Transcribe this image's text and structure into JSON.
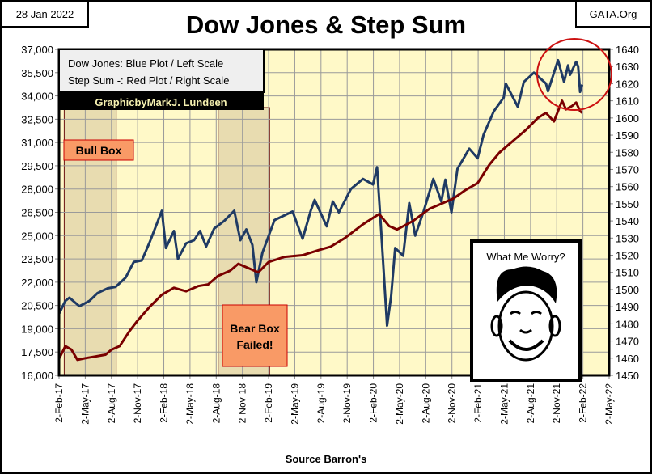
{
  "header": {
    "date": "28 Jan 2022",
    "site": "GATA.Org",
    "title": "Dow Jones & Step Sum"
  },
  "legend": {
    "line1": "Dow Jones: Blue Plot / Left Scale",
    "line2": "Step Sum -: Red Plot / Right Scale",
    "credit": "GraphicbyMarkJ. Lundeen"
  },
  "annotations": {
    "bull_box": "Bull Box",
    "bear_box_line1": "Bear Box",
    "bear_box_line2": "Failed!",
    "worry": "What Me Worry?"
  },
  "footer": {
    "source": "Source Barron's"
  },
  "colors": {
    "dow": "#1f3a64",
    "step_sum": "#7a0000",
    "plot_bg": "#fff9c8",
    "box_fill": "#e8dcb0",
    "label_fill": "#f99a66",
    "circle": "#cc1111"
  },
  "chart_data": {
    "type": "line",
    "title": "Dow Jones & Step Sum",
    "xlabel": "Source Barron's",
    "x_range": [
      "2017-02-02",
      "2022-05-02"
    ],
    "x_ticks": [
      "2-Feb-17",
      "2-May-17",
      "2-Aug-17",
      "2-Nov-17",
      "2-Feb-18",
      "2-May-18",
      "2-Aug-18",
      "2-Nov-18",
      "2-Feb-19",
      "2-May-19",
      "2-Aug-19",
      "2-Nov-19",
      "2-Feb-20",
      "2-May-20",
      "2-Aug-20",
      "2-Nov-20",
      "2-Feb-21",
      "2-May-21",
      "2-Aug-21",
      "2-Nov-21",
      "2-Feb-22",
      "2-May-22"
    ],
    "y_left": {
      "range": [
        16000,
        37000
      ],
      "ticks": [
        "16,000",
        "17,500",
        "19,000",
        "20,500",
        "22,000",
        "23,500",
        "25,000",
        "26,500",
        "28,000",
        "29,500",
        "31,000",
        "32,500",
        "34,000",
        "35,500",
        "37,000"
      ]
    },
    "y_right": {
      "range": [
        1450,
        1640
      ],
      "ticks": [
        "1450",
        "1460",
        "1470",
        "1480",
        "1490",
        "1500",
        "1510",
        "1520",
        "1530",
        "1540",
        "1550",
        "1560",
        "1570",
        "1580",
        "1590",
        "1600",
        "1610",
        "1620",
        "1630",
        "1640"
      ]
    },
    "grid": true,
    "series": [
      {
        "name": "Dow Jones",
        "axis": "left",
        "points": [
          [
            "2017-02-03",
            20000
          ],
          [
            "2017-02-24",
            20800
          ],
          [
            "2017-03-10",
            21000
          ],
          [
            "2017-04-14",
            20450
          ],
          [
            "2017-05-19",
            20800
          ],
          [
            "2017-06-16",
            21300
          ],
          [
            "2017-07-21",
            21600
          ],
          [
            "2017-08-18",
            21700
          ],
          [
            "2017-09-22",
            22300
          ],
          [
            "2017-10-20",
            23300
          ],
          [
            "2017-11-17",
            23400
          ],
          [
            "2017-12-15",
            24600
          ],
          [
            "2018-01-26",
            26600
          ],
          [
            "2018-02-09",
            24200
          ],
          [
            "2018-03-09",
            25300
          ],
          [
            "2018-03-23",
            23500
          ],
          [
            "2018-04-20",
            24500
          ],
          [
            "2018-05-18",
            24700
          ],
          [
            "2018-06-08",
            25300
          ],
          [
            "2018-06-29",
            24300
          ],
          [
            "2018-07-27",
            25450
          ],
          [
            "2018-08-31",
            25950
          ],
          [
            "2018-10-05",
            26600
          ],
          [
            "2018-10-26",
            24700
          ],
          [
            "2018-11-16",
            25400
          ],
          [
            "2018-12-07",
            24400
          ],
          [
            "2018-12-21",
            22000
          ],
          [
            "2019-01-11",
            23900
          ],
          [
            "2019-02-22",
            26000
          ],
          [
            "2019-04-26",
            26550
          ],
          [
            "2019-05-31",
            24800
          ],
          [
            "2019-06-28",
            26600
          ],
          [
            "2019-07-12",
            27300
          ],
          [
            "2019-08-23",
            25600
          ],
          [
            "2019-09-13",
            27200
          ],
          [
            "2019-10-04",
            26500
          ],
          [
            "2019-11-15",
            28000
          ],
          [
            "2019-12-27",
            28650
          ],
          [
            "2020-01-31",
            28300
          ],
          [
            "2020-02-14",
            29400
          ],
          [
            "2020-02-28",
            25400
          ],
          [
            "2020-03-20",
            19200
          ],
          [
            "2020-04-03",
            21100
          ],
          [
            "2020-04-17",
            24200
          ],
          [
            "2020-05-15",
            23700
          ],
          [
            "2020-06-05",
            27100
          ],
          [
            "2020-06-26",
            25000
          ],
          [
            "2020-07-24",
            26500
          ],
          [
            "2020-08-28",
            28650
          ],
          [
            "2020-09-25",
            27200
          ],
          [
            "2020-10-09",
            28600
          ],
          [
            "2020-10-30",
            26500
          ],
          [
            "2020-11-20",
            29300
          ],
          [
            "2020-12-31",
            30600
          ],
          [
            "2021-01-29",
            29980
          ],
          [
            "2021-02-19",
            31500
          ],
          [
            "2021-03-26",
            33000
          ],
          [
            "2021-04-30",
            33900
          ],
          [
            "2021-05-07",
            34800
          ],
          [
            "2021-06-18",
            33300
          ],
          [
            "2021-07-09",
            34900
          ],
          [
            "2021-08-13",
            35500
          ],
          [
            "2021-09-24",
            34800
          ],
          [
            "2021-10-01",
            34300
          ],
          [
            "2021-11-05",
            36300
          ],
          [
            "2021-11-26",
            34900
          ],
          [
            "2021-12-10",
            35970
          ],
          [
            "2021-12-17",
            35360
          ],
          [
            "2022-01-07",
            36200
          ],
          [
            "2022-01-14",
            35900
          ],
          [
            "2022-01-21",
            34260
          ],
          [
            "2022-01-28",
            34730
          ]
        ]
      },
      {
        "name": "Step Sum",
        "axis": "right",
        "points": [
          [
            "2017-02-03",
            1460
          ],
          [
            "2017-02-24",
            1467
          ],
          [
            "2017-03-17",
            1465
          ],
          [
            "2017-04-07",
            1459
          ],
          [
            "2017-05-05",
            1460
          ],
          [
            "2017-06-09",
            1461
          ],
          [
            "2017-07-14",
            1462
          ],
          [
            "2017-08-04",
            1465
          ],
          [
            "2017-09-01",
            1467
          ],
          [
            "2017-10-06",
            1476
          ],
          [
            "2017-11-03",
            1482
          ],
          [
            "2017-12-15",
            1490
          ],
          [
            "2018-01-26",
            1497
          ],
          [
            "2018-03-09",
            1501
          ],
          [
            "2018-04-20",
            1499
          ],
          [
            "2018-06-01",
            1502
          ],
          [
            "2018-07-06",
            1503
          ],
          [
            "2018-08-10",
            1508
          ],
          [
            "2018-09-21",
            1511
          ],
          [
            "2018-10-19",
            1515
          ],
          [
            "2018-11-30",
            1512
          ],
          [
            "2018-12-28",
            1510
          ],
          [
            "2019-02-01",
            1516
          ],
          [
            "2019-03-29",
            1519
          ],
          [
            "2019-05-31",
            1520
          ],
          [
            "2019-07-26",
            1523
          ],
          [
            "2019-09-06",
            1525
          ],
          [
            "2019-10-25",
            1530
          ],
          [
            "2019-12-27",
            1538
          ],
          [
            "2020-02-21",
            1544
          ],
          [
            "2020-03-27",
            1537
          ],
          [
            "2020-04-24",
            1535
          ],
          [
            "2020-06-19",
            1540
          ],
          [
            "2020-08-14",
            1547
          ],
          [
            "2020-09-25",
            1550
          ],
          [
            "2020-11-06",
            1553
          ],
          [
            "2020-12-18",
            1558
          ],
          [
            "2021-01-29",
            1562
          ],
          [
            "2021-03-12",
            1573
          ],
          [
            "2021-04-16",
            1580
          ],
          [
            "2021-06-04",
            1587
          ],
          [
            "2021-07-16",
            1593
          ],
          [
            "2021-08-27",
            1600
          ],
          [
            "2021-09-24",
            1603
          ],
          [
            "2021-10-22",
            1598
          ],
          [
            "2021-11-19",
            1610
          ],
          [
            "2021-12-03",
            1605
          ],
          [
            "2021-12-24",
            1607
          ],
          [
            "2022-01-07",
            1609
          ],
          [
            "2022-01-21",
            1604
          ],
          [
            "2022-01-28",
            1603
          ]
        ]
      }
    ]
  }
}
